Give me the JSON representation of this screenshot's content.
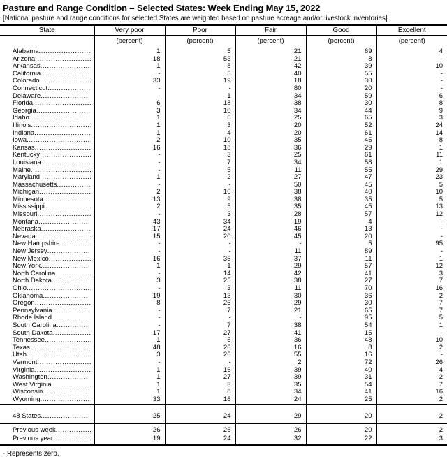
{
  "title": "Pasture and Range Condition – Selected States: Week Ending May 15, 2022",
  "subtitle": "[National pasture and range conditions for selected States are weighted based on pasture acreage and/or livestock inventories]",
  "footnote": "- Represents zero.",
  "table": {
    "columns": [
      "State",
      "Very poor",
      "Poor",
      "Fair",
      "Good",
      "Excellent"
    ],
    "unit_label": "(percent)",
    "rows": [
      {
        "state": "Alabama",
        "values": [
          "1",
          "5",
          "21",
          "69",
          "4"
        ]
      },
      {
        "state": "Arizona",
        "values": [
          "18",
          "53",
          "21",
          "8",
          "-"
        ]
      },
      {
        "state": "Arkansas",
        "values": [
          "1",
          "8",
          "42",
          "39",
          "10"
        ]
      },
      {
        "state": "California",
        "values": [
          "-",
          "5",
          "40",
          "55",
          "-"
        ]
      },
      {
        "state": "Colorado",
        "values": [
          "33",
          "19",
          "18",
          "30",
          "-"
        ]
      },
      {
        "state": "Connecticut",
        "values": [
          "-",
          "-",
          "80",
          "20",
          "-"
        ]
      },
      {
        "state": "Delaware",
        "values": [
          "-",
          "1",
          "34",
          "59",
          "6"
        ]
      },
      {
        "state": "Florida",
        "values": [
          "6",
          "18",
          "38",
          "30",
          "8"
        ]
      },
      {
        "state": "Georgia",
        "values": [
          "3",
          "10",
          "34",
          "44",
          "9"
        ]
      },
      {
        "state": "Idaho",
        "values": [
          "1",
          "6",
          "25",
          "65",
          "3"
        ]
      },
      {
        "state": "Illinois",
        "values": [
          "1",
          "3",
          "20",
          "52",
          "24"
        ]
      },
      {
        "state": "Indiana",
        "values": [
          "1",
          "4",
          "20",
          "61",
          "14"
        ]
      },
      {
        "state": "Iowa",
        "values": [
          "2",
          "10",
          "35",
          "45",
          "8"
        ]
      },
      {
        "state": "Kansas",
        "values": [
          "16",
          "18",
          "36",
          "29",
          "1"
        ]
      },
      {
        "state": "Kentucky",
        "values": [
          "-",
          "3",
          "25",
          "61",
          "11"
        ]
      },
      {
        "state": "Louisiana",
        "values": [
          "-",
          "7",
          "34",
          "58",
          "1"
        ]
      },
      {
        "state": "Maine",
        "values": [
          "-",
          "5",
          "11",
          "55",
          "29"
        ]
      },
      {
        "state": "Maryland",
        "values": [
          "1",
          "2",
          "27",
          "47",
          "23"
        ]
      },
      {
        "state": "Massachusetts",
        "values": [
          "-",
          "-",
          "50",
          "45",
          "5"
        ]
      },
      {
        "state": "Michigan",
        "values": [
          "2",
          "10",
          "38",
          "40",
          "10"
        ]
      },
      {
        "state": "Minnesota",
        "values": [
          "13",
          "9",
          "38",
          "35",
          "5"
        ]
      },
      {
        "state": "Mississippi",
        "values": [
          "2",
          "5",
          "35",
          "45",
          "13"
        ]
      },
      {
        "state": "Missouri",
        "values": [
          "-",
          "3",
          "28",
          "57",
          "12"
        ]
      },
      {
        "state": "Montana",
        "values": [
          "43",
          "34",
          "19",
          "4",
          "-"
        ]
      },
      {
        "state": "Nebraska",
        "values": [
          "17",
          "24",
          "46",
          "13",
          "-"
        ]
      },
      {
        "state": "Nevada",
        "values": [
          "15",
          "20",
          "45",
          "20",
          "-"
        ]
      },
      {
        "state": "New Hampshire",
        "values": [
          "-",
          "-",
          "-",
          "5",
          "95"
        ]
      },
      {
        "state": "New Jersey",
        "values": [
          "-",
          "-",
          "11",
          "89",
          "-"
        ]
      },
      {
        "state": "New Mexico",
        "values": [
          "16",
          "35",
          "37",
          "11",
          "1"
        ]
      },
      {
        "state": "New York",
        "values": [
          "1",
          "1",
          "29",
          "57",
          "12"
        ]
      },
      {
        "state": "North Carolina",
        "values": [
          "-",
          "14",
          "42",
          "41",
          "3"
        ]
      },
      {
        "state": "North Dakota",
        "values": [
          "3",
          "25",
          "38",
          "27",
          "7"
        ]
      },
      {
        "state": "Ohio",
        "values": [
          "-",
          "3",
          "11",
          "70",
          "16"
        ]
      },
      {
        "state": "Oklahoma",
        "values": [
          "19",
          "13",
          "30",
          "36",
          "2"
        ]
      },
      {
        "state": "Oregon",
        "values": [
          "8",
          "26",
          "29",
          "30",
          "7"
        ]
      },
      {
        "state": "Pennsylvania",
        "values": [
          "-",
          "7",
          "21",
          "65",
          "7"
        ]
      },
      {
        "state": "Rhode Island",
        "values": [
          "-",
          "-",
          "-",
          "95",
          "5"
        ]
      },
      {
        "state": "South Carolina",
        "values": [
          "-",
          "7",
          "38",
          "54",
          "1"
        ]
      },
      {
        "state": "South Dakota",
        "values": [
          "17",
          "27",
          "41",
          "15",
          "-"
        ]
      },
      {
        "state": "Tennessee",
        "values": [
          "1",
          "5",
          "36",
          "48",
          "10"
        ]
      },
      {
        "state": "Texas",
        "values": [
          "48",
          "26",
          "16",
          "8",
          "2"
        ]
      },
      {
        "state": "Utah",
        "values": [
          "3",
          "26",
          "55",
          "16",
          "-"
        ]
      },
      {
        "state": "Vermont",
        "values": [
          "-",
          "-",
          "2",
          "72",
          "26"
        ]
      },
      {
        "state": "Virginia",
        "values": [
          "1",
          "16",
          "39",
          "40",
          "4"
        ]
      },
      {
        "state": "Washington",
        "values": [
          "1",
          "27",
          "39",
          "31",
          "2"
        ]
      },
      {
        "state": "West Virginia",
        "values": [
          "1",
          "3",
          "35",
          "54",
          "7"
        ]
      },
      {
        "state": "Wisconsin",
        "values": [
          "1",
          "8",
          "34",
          "41",
          "16"
        ]
      },
      {
        "state": "Wyoming",
        "values": [
          "33",
          "16",
          "24",
          "25",
          "2"
        ]
      }
    ],
    "summary": {
      "state": "48 States",
      "values": [
        "25",
        "24",
        "29",
        "20",
        "2"
      ]
    },
    "history": [
      {
        "state": "Previous week",
        "values": [
          "26",
          "26",
          "26",
          "20",
          "2"
        ]
      },
      {
        "state": "Previous year",
        "values": [
          "19",
          "24",
          "32",
          "22",
          "3"
        ]
      }
    ]
  }
}
